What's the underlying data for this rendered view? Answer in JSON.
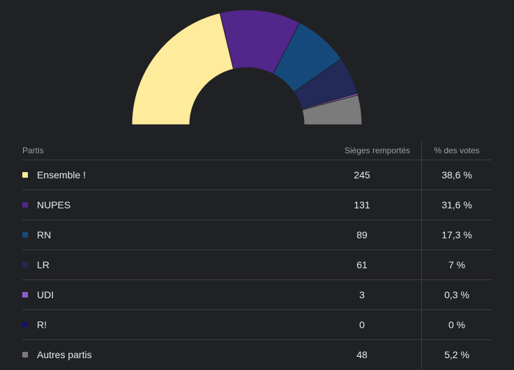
{
  "chart_data": {
    "type": "pie",
    "shape": "half-donut",
    "columns": [
      "Partis",
      "Sièges remportés",
      "% des votes"
    ],
    "rows": [
      {
        "party": "Ensemble !",
        "seats": 245,
        "votes": "38,6 %",
        "color": "#feeb9b"
      },
      {
        "party": "NUPES",
        "seats": 131,
        "votes": "31,6 %",
        "color": "#52268a"
      },
      {
        "party": "RN",
        "seats": 89,
        "votes": "17,3 %",
        "color": "#164a7d"
      },
      {
        "party": "LR",
        "seats": 61,
        "votes": "7 %",
        "color": "#232a58"
      },
      {
        "party": "UDI",
        "seats": 3,
        "votes": "0,3 %",
        "color": "#8f5bc9"
      },
      {
        "party": "R!",
        "seats": 0,
        "votes": "0 %",
        "color": "#12126a"
      },
      {
        "party": "Autres partis",
        "seats": 48,
        "votes": "5,2 %",
        "color": "#7b7b7b"
      }
    ]
  }
}
